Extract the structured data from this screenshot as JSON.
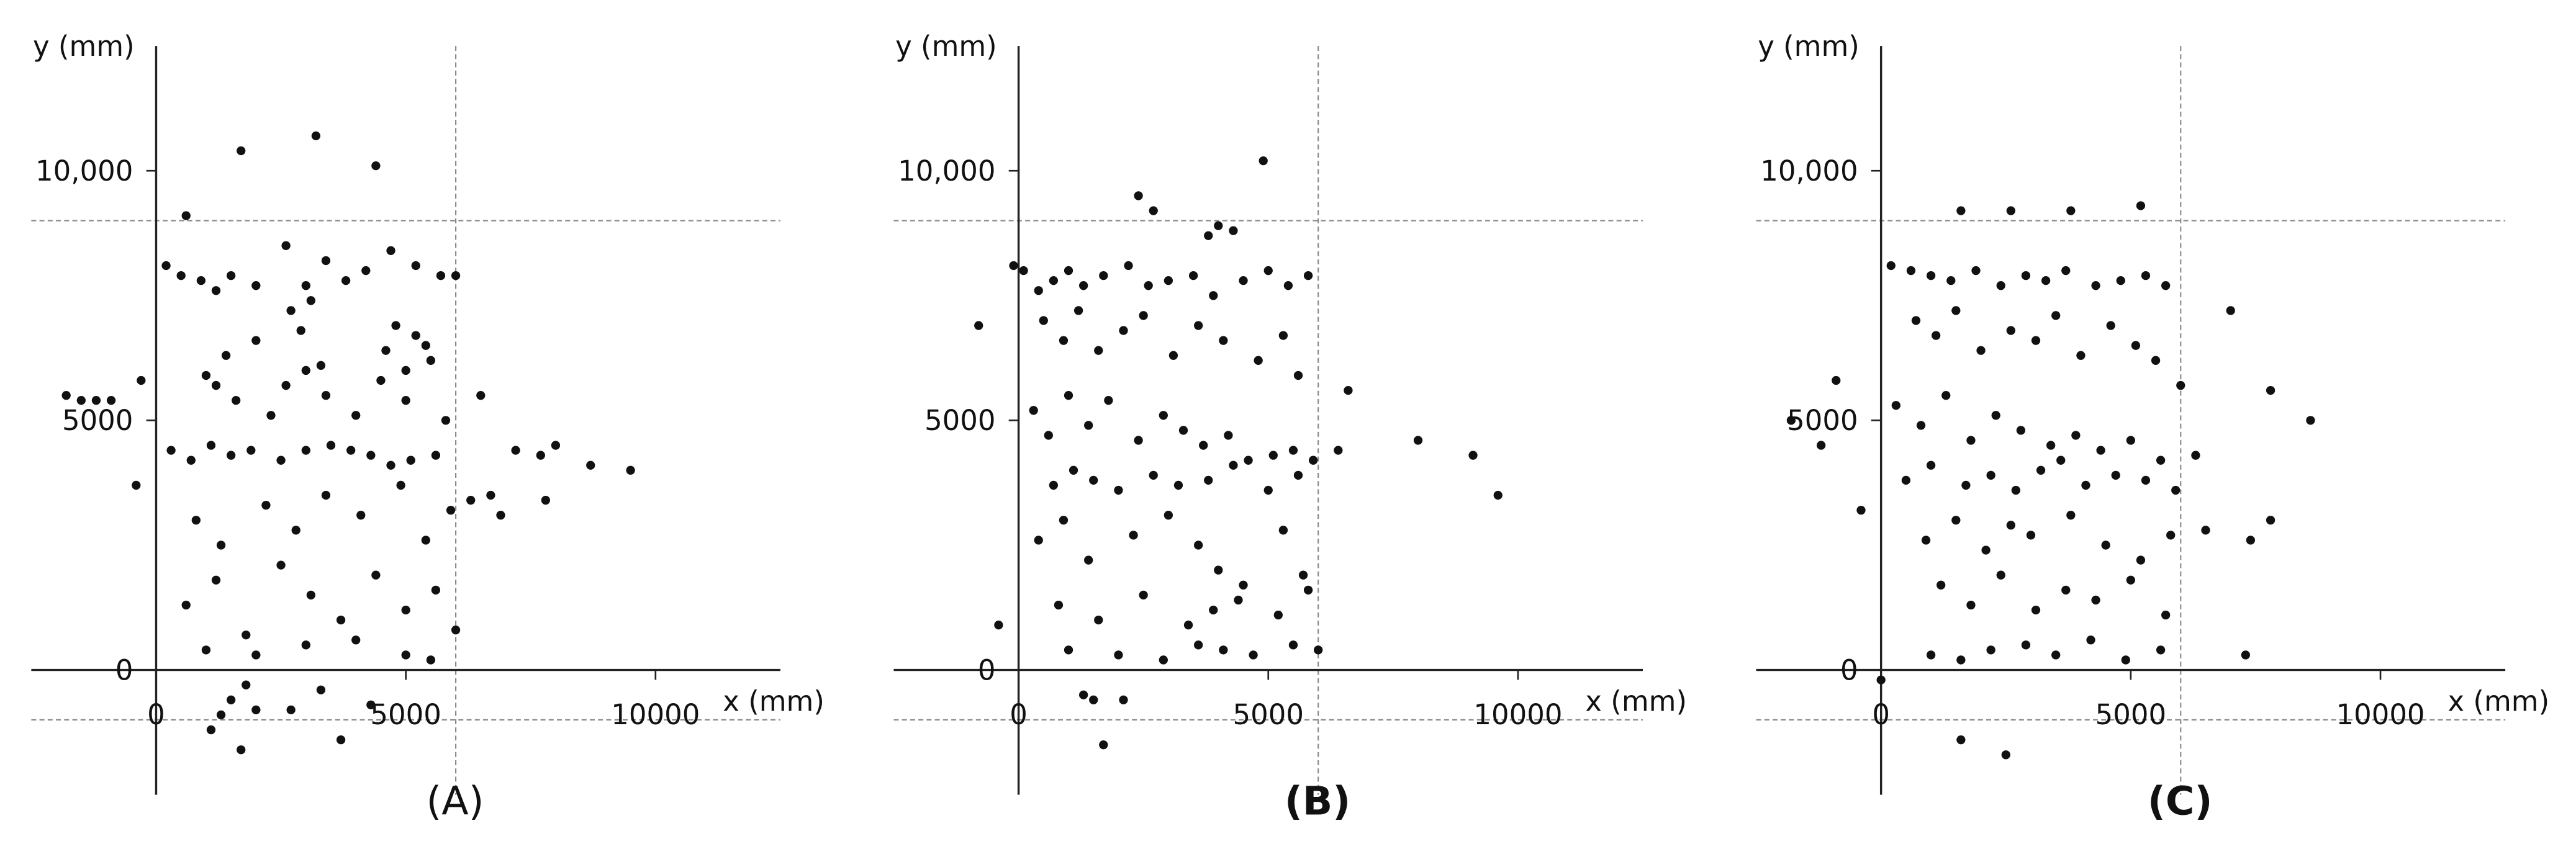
{
  "chart_data": [
    {
      "type": "scatter",
      "panel_label": "(A)",
      "bold_label": false,
      "x_label": "x (mm)",
      "y_label": "y (mm)",
      "color": "#111111",
      "xlim": [
        -2500,
        12500
      ],
      "ylim": [
        -2500,
        12500
      ],
      "xticks": [
        0,
        5000,
        10000
      ],
      "yticks": [
        0,
        5000,
        {
          "value": 10000,
          "label": "10,000"
        }
      ],
      "vlines": [
        6000
      ],
      "hlines": [
        9000,
        -1000
      ],
      "x": [
        1700,
        3200,
        4400,
        600,
        -1800,
        -1500,
        -1200,
        -900,
        -300,
        -400,
        8000,
        8700,
        9500,
        7700,
        7200,
        7800,
        6500,
        6700,
        6300,
        6900,
        1100,
        1300,
        1700,
        1500,
        2000,
        2700,
        3700,
        3300,
        1800,
        4300,
        200,
        500,
        900,
        1200,
        1500,
        2000,
        2600,
        3000,
        3400,
        3800,
        4200,
        4700,
        5200,
        5700,
        6000,
        2700,
        2900,
        3100,
        3300,
        4600,
        4800,
        5000,
        5200,
        5400,
        1000,
        1200,
        1400,
        1600,
        2000,
        2300,
        2600,
        3000,
        3400,
        4000,
        4500,
        5000,
        5500,
        5800,
        300,
        700,
        1100,
        1500,
        1900,
        2500,
        3000,
        3500,
        3900,
        4300,
        4700,
        5100,
        5600,
        800,
        1300,
        2200,
        2800,
        3400,
        4100,
        4900,
        5400,
        5900,
        600,
        1200,
        1800,
        2500,
        3100,
        3700,
        4400,
        5000,
        5600,
        6000,
        1000,
        2000,
        3000,
        4000,
        5000,
        5500
      ],
      "y": [
        10400,
        10700,
        10100,
        9100,
        5500,
        5400,
        5400,
        5400,
        5800,
        3700,
        4500,
        4100,
        4000,
        4300,
        4400,
        3400,
        5500,
        3500,
        3400,
        3100,
        -1200,
        -900,
        -1600,
        -600,
        -800,
        -800,
        -1400,
        -400,
        -300,
        -700,
        8100,
        7900,
        7800,
        7600,
        7900,
        7700,
        8500,
        7700,
        8200,
        7800,
        8000,
        8400,
        8100,
        7900,
        7900,
        7200,
        6800,
        7400,
        6100,
        6400,
        6900,
        6000,
        6700,
        6500,
        5900,
        5700,
        6300,
        5400,
        6600,
        5100,
        5700,
        6000,
        5500,
        5100,
        5800,
        5400,
        6200,
        5000,
        4400,
        4200,
        4500,
        4300,
        4400,
        4200,
        4400,
        4500,
        4400,
        4300,
        4100,
        4200,
        4300,
        3000,
        2500,
        3300,
        2800,
        3500,
        3100,
        3700,
        2600,
        3200,
        1300,
        1800,
        700,
        2100,
        1500,
        1000,
        1900,
        1200,
        1600,
        800,
        400,
        300,
        500,
        600,
        300,
        200
      ]
    },
    {
      "type": "scatter",
      "panel_label": "(B)",
      "bold_label": true,
      "x_label": "x (mm)",
      "y_label": "y (mm)",
      "color": "#111111",
      "xlim": [
        -2500,
        12500
      ],
      "ylim": [
        -2500,
        12500
      ],
      "xticks": [
        0,
        5000,
        10000
      ],
      "yticks": [
        0,
        5000,
        {
          "value": 10000,
          "label": "10,000"
        }
      ],
      "vlines": [
        6000
      ],
      "hlines": [
        9000,
        -1000
      ],
      "x": [
        4900,
        2400,
        2700,
        -800,
        8000,
        9100,
        9600,
        6600,
        6400,
        -400,
        1500,
        1700,
        1300,
        2100,
        4000,
        3800,
        4300,
        -100,
        100,
        400,
        700,
        1000,
        1300,
        1700,
        2200,
        2600,
        3000,
        3500,
        3900,
        4500,
        5000,
        5400,
        5800,
        500,
        900,
        1200,
        1600,
        2100,
        2500,
        3100,
        3600,
        4100,
        4800,
        5300,
        5600,
        300,
        600,
        1000,
        1400,
        1800,
        2400,
        2900,
        3300,
        3700,
        4200,
        4600,
        5100,
        5500,
        5900,
        700,
        1100,
        1500,
        2000,
        2700,
        3200,
        3800,
        4300,
        5000,
        5600,
        400,
        900,
        1400,
        2300,
        3000,
        3600,
        4000,
        4500,
        5300,
        5700,
        800,
        1600,
        2500,
        3400,
        3900,
        4400,
        5200,
        5800,
        1000,
        2000,
        2900,
        3600,
        4100,
        4700,
        5500,
        6000
      ],
      "y": [
        10200,
        9500,
        9200,
        6900,
        4600,
        4300,
        3500,
        5600,
        4400,
        900,
        -600,
        -1500,
        -500,
        -600,
        8900,
        8700,
        8800,
        8100,
        8000,
        7600,
        7800,
        8000,
        7700,
        7900,
        8100,
        7700,
        7800,
        7900,
        7500,
        7800,
        8000,
        7700,
        7900,
        7000,
        6600,
        7200,
        6400,
        6800,
        7100,
        6300,
        6900,
        6600,
        6200,
        6700,
        5900,
        5200,
        4700,
        5500,
        4900,
        5400,
        4600,
        5100,
        4800,
        4500,
        4700,
        4200,
        4300,
        4400,
        4200,
        3700,
        4000,
        3800,
        3600,
        3900,
        3700,
        3800,
        4100,
        3600,
        3900,
        2600,
        3000,
        2200,
        2700,
        3100,
        2500,
        2000,
        1700,
        2800,
        1900,
        1300,
        1000,
        1500,
        900,
        1200,
        1400,
        1100,
        1600,
        400,
        300,
        200,
        500,
        400,
        300,
        500,
        400
      ]
    },
    {
      "type": "scatter",
      "panel_label": "(C)",
      "bold_label": true,
      "x_label": "x (mm)",
      "y_label": "y (mm)",
      "color": "#111111",
      "xlim": [
        -2500,
        12500
      ],
      "ylim": [
        -2500,
        12500
      ],
      "xticks": [
        0,
        5000,
        10000
      ],
      "yticks": [
        0,
        5000,
        {
          "value": 10000,
          "label": "10,000"
        }
      ],
      "vlines": [
        6000
      ],
      "hlines": [
        9000,
        -1000
      ],
      "x": [
        1600,
        2600,
        3800,
        5200,
        8600,
        7800,
        7800,
        7000,
        -1800,
        -1200,
        -900,
        -400,
        1600,
        2500,
        7300,
        7400,
        0,
        200,
        600,
        1000,
        1400,
        1900,
        2400,
        2900,
        3300,
        3700,
        4300,
        4800,
        5300,
        5700,
        700,
        1100,
        1500,
        2000,
        2600,
        3100,
        3500,
        4000,
        4600,
        5100,
        5500,
        6000,
        300,
        800,
        1300,
        1800,
        2300,
        2800,
        3400,
        3900,
        4400,
        5000,
        5600,
        6300,
        500,
        1000,
        1700,
        2200,
        2700,
        3200,
        3600,
        4100,
        4700,
        5300,
        5900,
        6500,
        900,
        1500,
        2100,
        2600,
        3000,
        3800,
        4500,
        5200,
        5800,
        1200,
        1800,
        2400,
        3100,
        3700,
        4300,
        5000,
        5700,
        1000,
        1600,
        2200,
        2900,
        3500,
        4200,
        4900,
        5600
      ],
      "y": [
        9200,
        9200,
        9200,
        9300,
        5000,
        5600,
        3000,
        7200,
        5000,
        4500,
        5800,
        3200,
        -1400,
        -1700,
        300,
        2600,
        -200,
        8100,
        8000,
        7900,
        7800,
        8000,
        7700,
        7900,
        7800,
        8000,
        7700,
        7800,
        7900,
        7700,
        7000,
        6700,
        7200,
        6400,
        6800,
        6600,
        7100,
        6300,
        6900,
        6500,
        6200,
        5700,
        5300,
        4900,
        5500,
        4600,
        5100,
        4800,
        4500,
        4700,
        4400,
        4600,
        4200,
        4300,
        3800,
        4100,
        3700,
        3900,
        3600,
        4000,
        4200,
        3700,
        3900,
        3800,
        3600,
        2800,
        2600,
        3000,
        2400,
        2900,
        2700,
        3100,
        2500,
        2200,
        2700,
        1700,
        1300,
        1900,
        1200,
        1600,
        1400,
        1800,
        1100,
        300,
        200,
        400,
        500,
        300,
        600,
        200,
        400
      ]
    }
  ]
}
